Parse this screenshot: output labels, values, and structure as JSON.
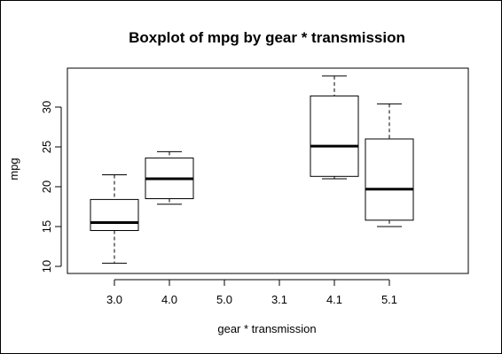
{
  "chart_data": {
    "type": "boxplot",
    "title": "Boxplot of mpg by gear * transmission",
    "xlabel": "gear * transmission",
    "ylabel": "mpg",
    "ylim": [
      10,
      34
    ],
    "yticks": [
      10,
      15,
      20,
      25,
      30
    ],
    "grid": false,
    "categories": [
      "3.0",
      "4.0",
      "5.0",
      "3.1",
      "4.1",
      "5.1"
    ],
    "boxes": [
      {
        "category": "3.0",
        "min": 10.4,
        "q1": 14.5,
        "median": 15.5,
        "q3": 18.4,
        "max": 21.5
      },
      {
        "category": "4.0",
        "min": 17.8,
        "q1": 18.5,
        "median": 21.0,
        "q3": 23.6,
        "max": 24.4
      },
      null,
      null,
      {
        "category": "4.1",
        "min": 21.0,
        "q1": 21.3,
        "median": 25.1,
        "q3": 31.4,
        "max": 33.9
      },
      {
        "category": "5.1",
        "min": 15.0,
        "q1": 15.8,
        "median": 19.7,
        "q3": 26.0,
        "max": 30.4
      }
    ]
  },
  "colors": {
    "box_fill": "#ffffff",
    "stroke": "#000000"
  }
}
